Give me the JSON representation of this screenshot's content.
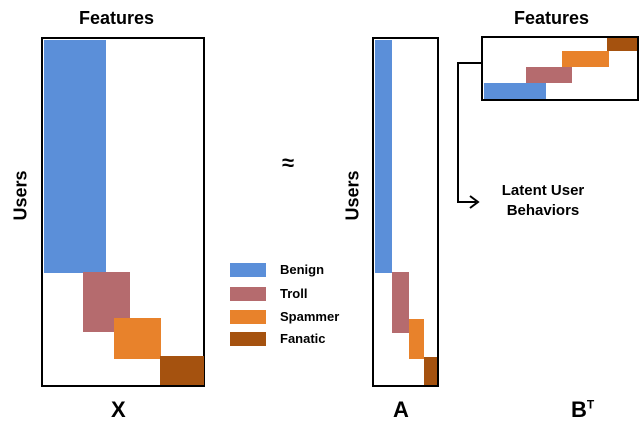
{
  "features_label": "Features",
  "users_label": "Users",
  "approx_symbol": "≈",
  "latent_label_line1": "Latent User",
  "latent_label_line2": "Behaviors",
  "matrix_x_label": "X",
  "matrix_a_label": "A",
  "matrix_bt_label": "B",
  "matrix_bt_sup": "T",
  "legend": [
    {
      "label": "Benign",
      "color": "#5b8fd9"
    },
    {
      "label": "Troll",
      "color": "#b56b6e"
    },
    {
      "label": "Spammer",
      "color": "#e8822b"
    },
    {
      "label": "Fanatic",
      "color": "#a5520f"
    }
  ]
}
